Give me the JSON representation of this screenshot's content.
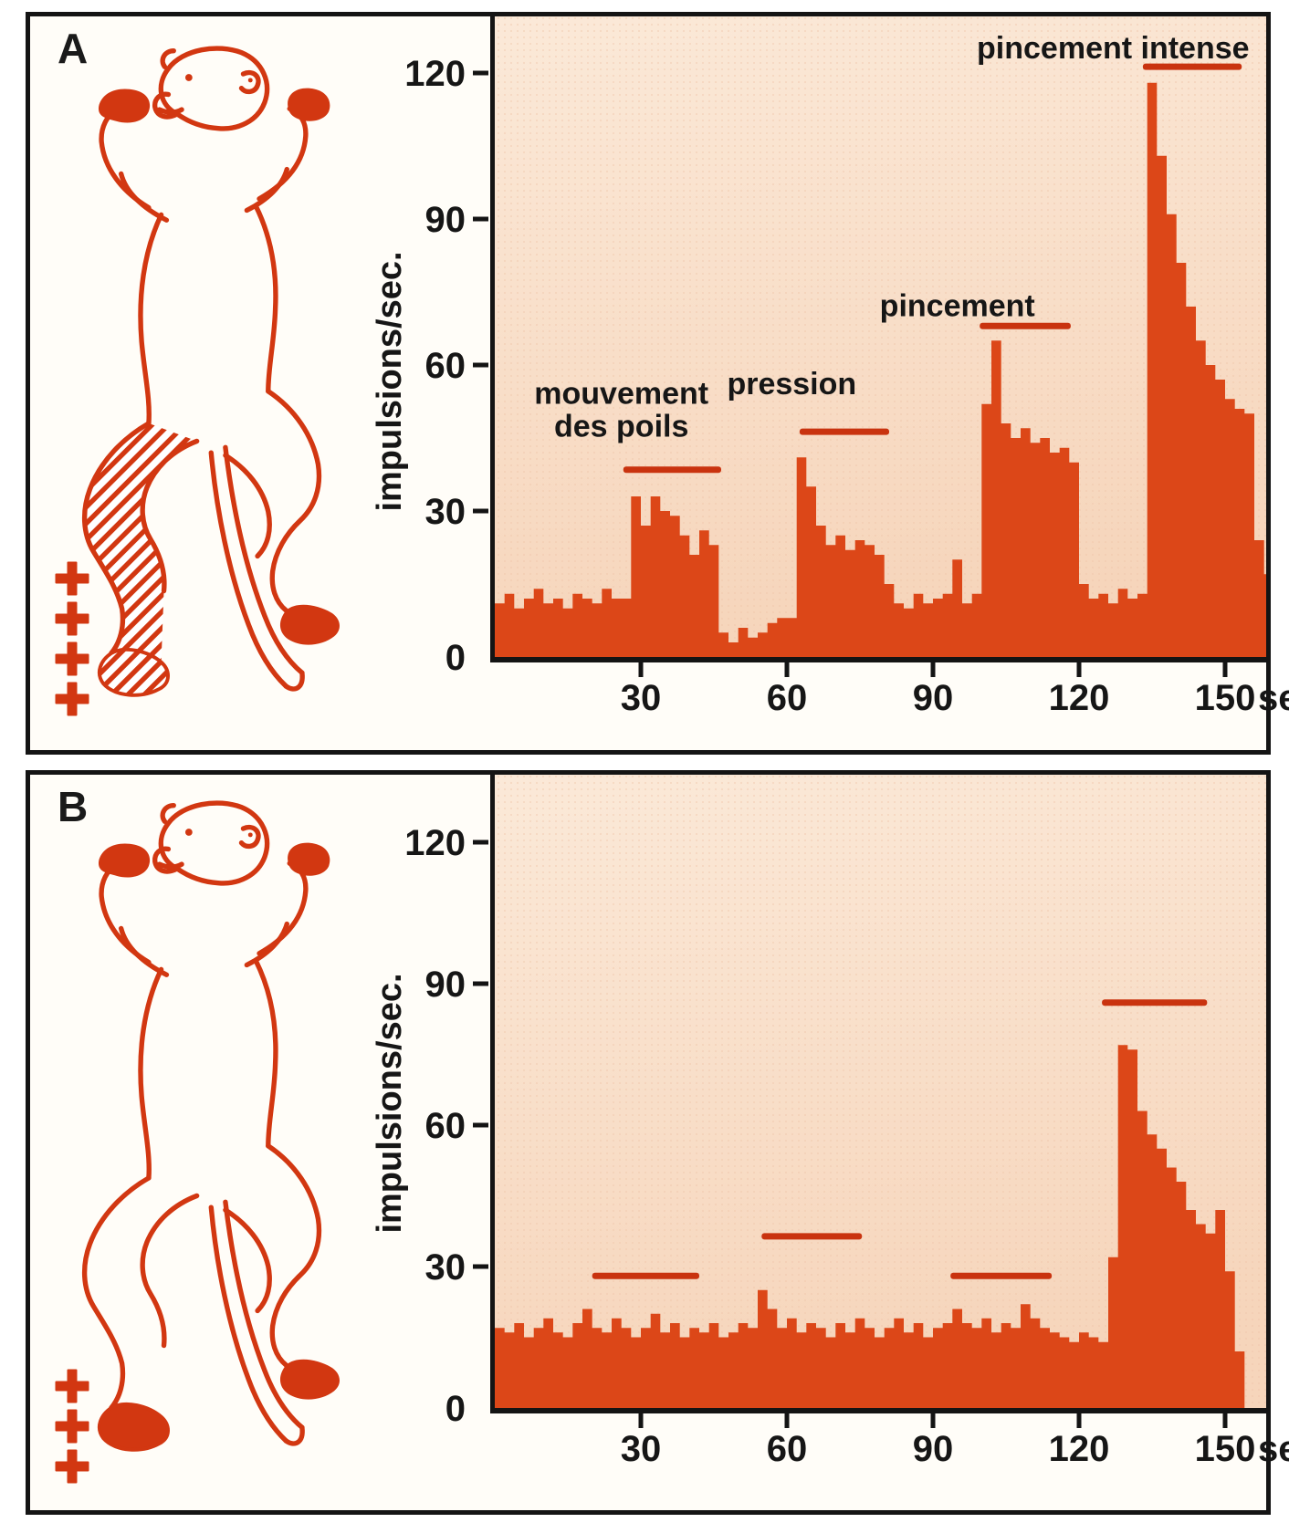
{
  "figure": {
    "panels": [
      {
        "id": "A",
        "label": "A",
        "plus_marks": 4,
        "receptive_field_hatched": true
      },
      {
        "id": "B",
        "label": "B",
        "plus_marks": 3,
        "receptive_field_hatched": false
      }
    ]
  },
  "colors": {
    "page_bg": "#ffffff",
    "panel_bg": "#fffdf8",
    "panel_border": "#141414",
    "plot_bg_light": "#fbe9d8",
    "plot_bg_dark": "#f6d5bb",
    "histogram_fill": "#dc4718",
    "accent_red": "#c9330f",
    "monkey_red": "#d23711",
    "text": "#161616"
  },
  "chart_data": [
    {
      "panel": "A",
      "type": "area",
      "title": "",
      "ylabel": "impulsions/sec.",
      "x_unit_label": "sec.",
      "bin_seconds": 2,
      "x_start": 0,
      "ylim": [
        0,
        131
      ],
      "xlim": [
        0,
        158
      ],
      "yticks": [
        0,
        30,
        60,
        90,
        120
      ],
      "xticks": [
        30,
        60,
        90,
        120,
        150
      ],
      "values": [
        11,
        13,
        10,
        12,
        14,
        11,
        12,
        10,
        13,
        12,
        11,
        14,
        12,
        12,
        33,
        27,
        33,
        30,
        29,
        25,
        21,
        26,
        23,
        5,
        3,
        6,
        4,
        5,
        7,
        8,
        8,
        41,
        35,
        27,
        23,
        25,
        22,
        24,
        23,
        21,
        15,
        11,
        10,
        13,
        11,
        12,
        13,
        20,
        11,
        13,
        52,
        65,
        48,
        45,
        47,
        44,
        45,
        42,
        43,
        40,
        15,
        12,
        13,
        11,
        14,
        12,
        13,
        118,
        103,
        91,
        81,
        72,
        65,
        60,
        57,
        53,
        51,
        50,
        24,
        17
      ],
      "annotations": [
        {
          "lines": [
            "mouvement",
            "des poils"
          ],
          "label_t": 26,
          "label_v": 52,
          "bar": {
            "t0": 26.4,
            "t1": 46.5,
            "level": 38.5
          }
        },
        {
          "lines": [
            "pression"
          ],
          "label_t": 61,
          "label_v": 54,
          "bar": {
            "t0": 62.6,
            "t1": 81.0,
            "level": 46.3
          }
        },
        {
          "lines": [
            "pincement"
          ],
          "label_t": 95,
          "label_v": 70,
          "bar": {
            "t0": 99.6,
            "t1": 118.3,
            "level": 68.0
          }
        },
        {
          "lines": [
            "pincement intense"
          ],
          "label_t": 127,
          "label_v": 123,
          "bar": {
            "t0": 133.1,
            "t1": 153.4,
            "level": 121.3
          }
        }
      ]
    },
    {
      "panel": "B",
      "type": "area",
      "title": "",
      "ylabel": "impulsions/sec.",
      "x_unit_label": "sec.",
      "bin_seconds": 2,
      "x_start": 0,
      "ylim": [
        0,
        134
      ],
      "xlim": [
        0,
        158
      ],
      "yticks": [
        0,
        30,
        60,
        90,
        120
      ],
      "xticks": [
        30,
        60,
        90,
        120,
        150
      ],
      "values": [
        17,
        16,
        18,
        15,
        17,
        19,
        16,
        15,
        18,
        21,
        17,
        16,
        19,
        17,
        15,
        17,
        20,
        16,
        18,
        15,
        17,
        16,
        18,
        15,
        16,
        18,
        17,
        25,
        21,
        17,
        19,
        16,
        18,
        17,
        15,
        18,
        16,
        19,
        17,
        15,
        17,
        19,
        16,
        18,
        15,
        17,
        18,
        21,
        18,
        17,
        19,
        16,
        18,
        17,
        22,
        19,
        17,
        16,
        15,
        14,
        16,
        15,
        14,
        32,
        77,
        76,
        63,
        58,
        55,
        51,
        48,
        42,
        39,
        37,
        42,
        29,
        12,
        0,
        0,
        0
      ],
      "annotations": [
        {
          "lines": [],
          "bar": {
            "t0": 20.0,
            "t1": 42.0,
            "level": 28.0
          }
        },
        {
          "lines": [],
          "bar": {
            "t0": 54.8,
            "t1": 75.4,
            "level": 36.4
          }
        },
        {
          "lines": [],
          "bar": {
            "t0": 93.6,
            "t1": 114.4,
            "level": 28.0
          }
        },
        {
          "lines": [],
          "bar": {
            "t0": 124.7,
            "t1": 146.3,
            "level": 86.0
          }
        }
      ]
    }
  ]
}
